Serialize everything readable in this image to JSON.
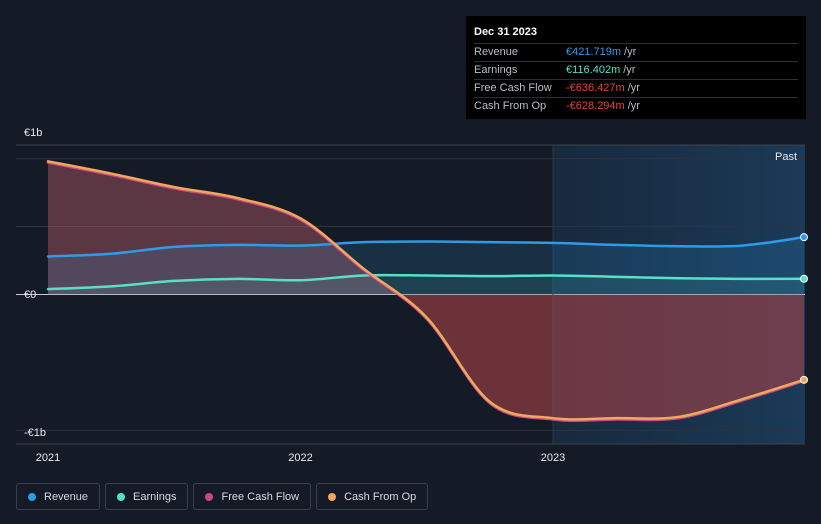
{
  "chart_data": {
    "type": "area",
    "title": "",
    "x_ticks": [
      "2021",
      "2022",
      "2023"
    ],
    "xlim": [
      2021.0,
      2023.994
    ],
    "y_ticks": [
      "€1b",
      "€0",
      "-€1b"
    ],
    "ylim": [
      -1.1,
      1.1
    ],
    "past_label": "Past",
    "units": "€b",
    "series": [
      {
        "name": "Revenue",
        "color": "#2e9be8",
        "x": [
          2021.0,
          2021.25,
          2021.5,
          2021.75,
          2022.0,
          2022.25,
          2022.5,
          2022.75,
          2023.0,
          2023.25,
          2023.5,
          2023.75,
          2023.994
        ],
        "y": [
          0.28,
          0.3,
          0.35,
          0.365,
          0.36,
          0.385,
          0.39,
          0.385,
          0.38,
          0.365,
          0.355,
          0.36,
          0.422
        ]
      },
      {
        "name": "Earnings",
        "color": "#58e0c5",
        "x": [
          2021.0,
          2021.25,
          2021.5,
          2021.75,
          2022.0,
          2022.25,
          2022.5,
          2022.75,
          2023.0,
          2023.25,
          2023.5,
          2023.75,
          2023.994
        ],
        "y": [
          0.04,
          0.06,
          0.1,
          0.115,
          0.105,
          0.14,
          0.14,
          0.135,
          0.14,
          0.13,
          0.12,
          0.115,
          0.116
        ]
      },
      {
        "name": "Free Cash Flow",
        "color": "#c84a86",
        "x": [
          2021.0,
          2021.25,
          2021.5,
          2021.75,
          2022.0,
          2022.25,
          2022.5,
          2022.75,
          2023.0,
          2023.25,
          2023.5,
          2023.75,
          2023.994
        ],
        "y": [
          0.97,
          0.88,
          0.78,
          0.7,
          0.55,
          0.18,
          -0.18,
          -0.8,
          -0.92,
          -0.92,
          -0.91,
          -0.78,
          -0.636
        ]
      },
      {
        "name": "Cash From Op",
        "color": "#f0a85a",
        "x": [
          2021.0,
          2021.25,
          2021.5,
          2021.75,
          2022.0,
          2022.25,
          2022.5,
          2022.75,
          2023.0,
          2023.25,
          2023.5,
          2023.75,
          2023.994
        ],
        "y": [
          0.98,
          0.89,
          0.79,
          0.71,
          0.56,
          0.19,
          -0.17,
          -0.79,
          -0.91,
          -0.91,
          -0.9,
          -0.77,
          -0.628
        ]
      }
    ]
  },
  "tooltip": {
    "date": "Dec 31 2023",
    "unit": "/yr",
    "rows": [
      {
        "label": "Revenue",
        "value": "€421.719m",
        "color": "#2e9be8"
      },
      {
        "label": "Earnings",
        "value": "€116.402m",
        "color": "#58e0c5"
      },
      {
        "label": "Free Cash Flow",
        "value": "-€636.427m",
        "color": "#e8413f"
      },
      {
        "label": "Cash From Op",
        "value": "-€628.294m",
        "color": "#e8413f"
      }
    ]
  },
  "legend": [
    {
      "label": "Revenue",
      "color": "#2e9be8"
    },
    {
      "label": "Earnings",
      "color": "#58e0c5"
    },
    {
      "label": "Free Cash Flow",
      "color": "#c84a86"
    },
    {
      "label": "Cash From Op",
      "color": "#f0a85a"
    }
  ]
}
